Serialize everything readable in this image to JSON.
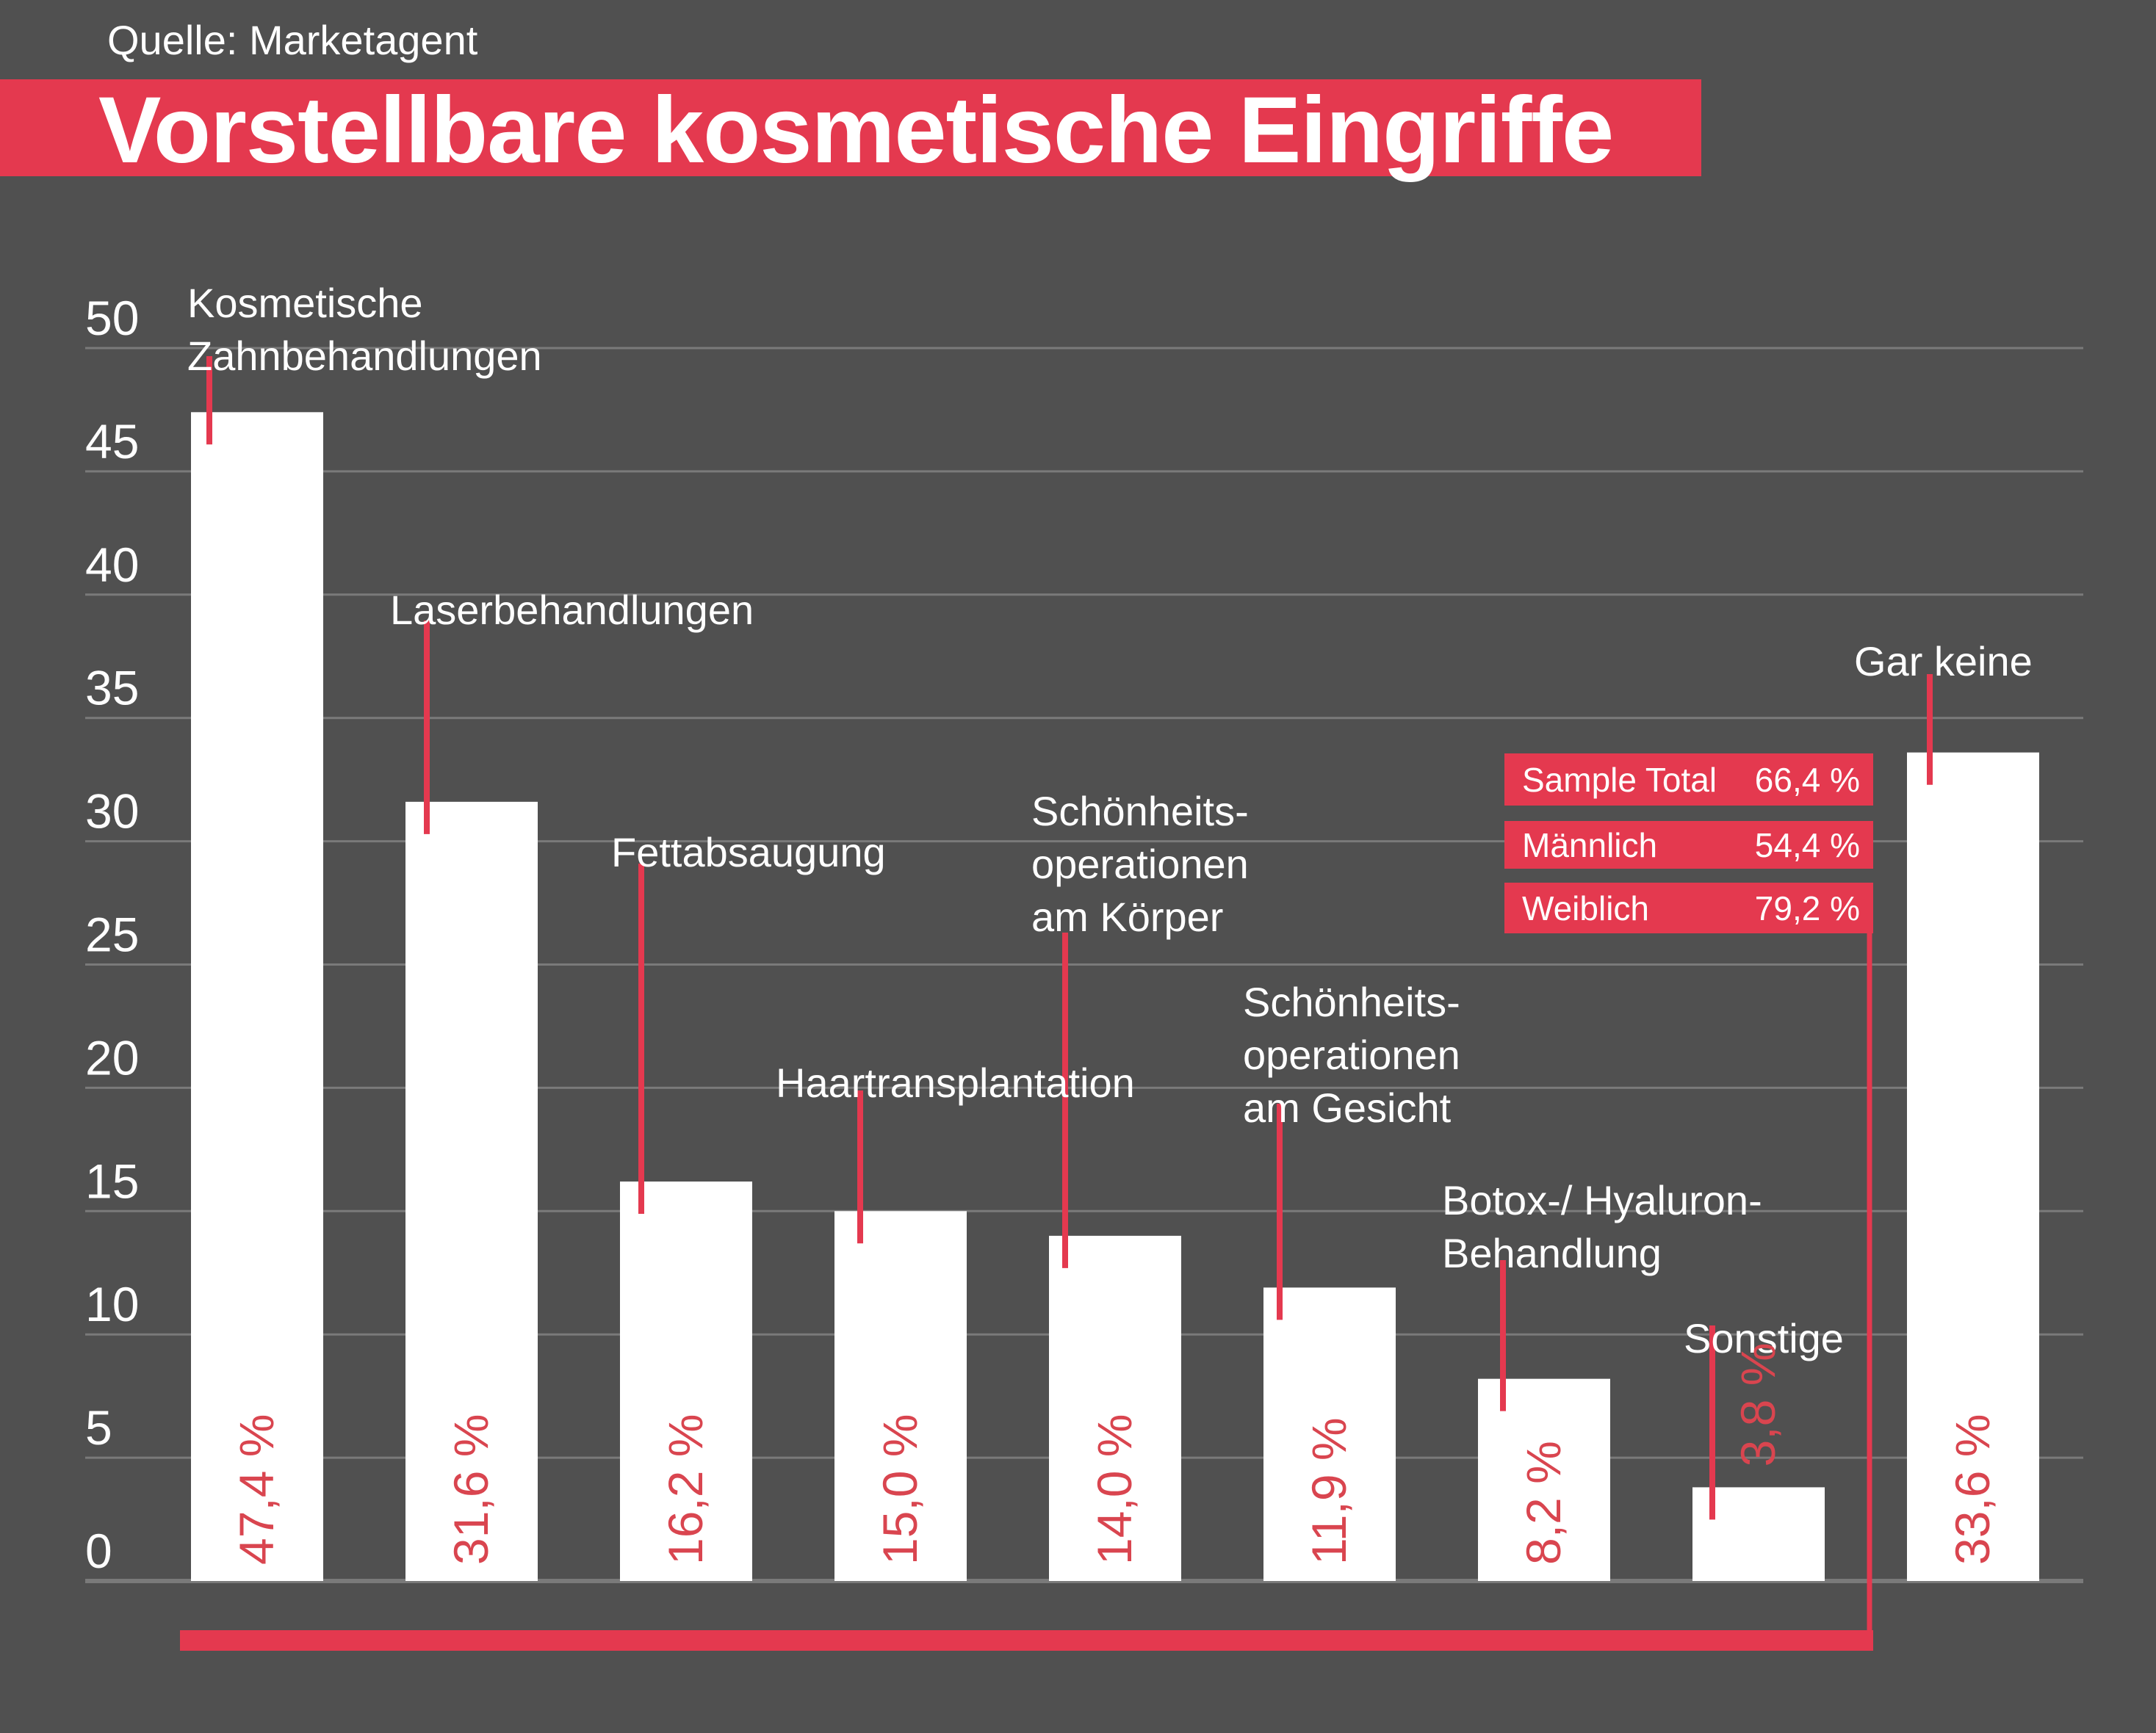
{
  "header": {
    "source": "Quelle: Marketagent",
    "title": "Vorstellbare kosmetische Eingriffe"
  },
  "colors": {
    "background": "#505050",
    "accent": "#e4394f",
    "bar": "#ffffff",
    "value_text": "#d9454f",
    "grid": "#7a7a7a"
  },
  "legend_box": [
    {
      "label": "Sample Total",
      "value": "66,4 %"
    },
    {
      "label": "Männlich",
      "value": "54,4 %"
    },
    {
      "label": "Weiblich",
      "value": "79,2 %"
    }
  ],
  "chart_data": {
    "type": "bar",
    "title": "Vorstellbare kosmetische Eingriffe",
    "source": "Quelle: Marketagent",
    "xlabel": "",
    "ylabel": "",
    "ylim": [
      0,
      50
    ],
    "yticks": [
      0,
      5,
      10,
      15,
      20,
      25,
      30,
      35,
      40,
      45,
      50
    ],
    "grid": true,
    "categories": [
      [
        "Kosmetische",
        "Zahnbehandlungen"
      ],
      [
        "Laserbehandlungen"
      ],
      [
        "Fettabsaugung"
      ],
      [
        "Haartransplantation"
      ],
      [
        "Schönheits-",
        "operationen",
        "am Körper"
      ],
      [
        "Schönheits-",
        "operationen",
        "am Gesicht"
      ],
      [
        "Botox-/ Hyaluron-",
        "Behandlung"
      ],
      [
        "Sonstige"
      ],
      [
        "Gar keine"
      ]
    ],
    "values": [
      47.4,
      31.6,
      16.2,
      15.0,
      14.0,
      11.9,
      8.2,
      3.8,
      33.6
    ],
    "value_labels": [
      "47,4 %",
      "31,6 %",
      "16,2 %",
      "15,0 %",
      "14,0 %",
      "11,9 %",
      "8,2 %",
      "3,8 %",
      "33,6 %"
    ],
    "group_bracket": {
      "covers_categories": 8,
      "summary": [
        {
          "label": "Sample Total",
          "value": 66.4
        },
        {
          "label": "Männlich",
          "value": 54.4
        },
        {
          "label": "Weiblich",
          "value": 79.2
        }
      ]
    }
  }
}
